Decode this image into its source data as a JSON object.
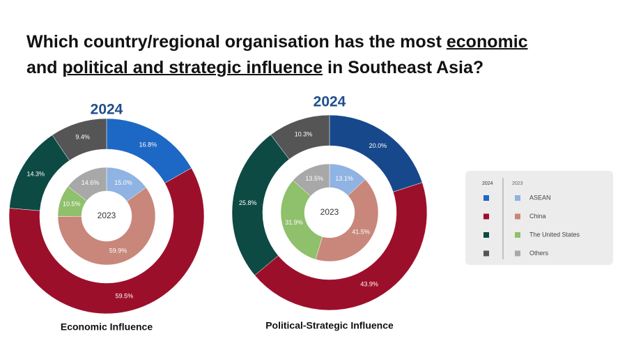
{
  "title_lines": [
    [
      {
        "text": "Which country/regional organisation has the most ",
        "underline": false
      },
      {
        "text": "economic",
        "underline": true
      }
    ],
    [
      {
        "text": "and ",
        "underline": false
      },
      {
        "text": "political and strategic influence",
        "underline": true
      },
      {
        "text": " in Southeast Asia?",
        "underline": false
      }
    ]
  ],
  "chart_data": [
    {
      "type": "donut",
      "title": "Economic Influence",
      "categories": [
        "ASEAN",
        "China",
        "The United States",
        "Others"
      ],
      "series": [
        {
          "name": "2024",
          "ring": "outer",
          "colors": [
            "#1d68c4",
            "#9c0f2a",
            "#0d4a44",
            "#555555"
          ],
          "values": [
            16.8,
            59.5,
            14.3,
            9.4
          ],
          "value_labels": [
            "16.8%",
            "59.5%",
            "14.3%",
            "9.4%"
          ]
        },
        {
          "name": "2023",
          "ring": "inner",
          "colors": [
            "#8fb3e2",
            "#c8877a",
            "#8fc06b",
            "#a8a8a8"
          ],
          "values": [
            15.0,
            59.9,
            10.5,
            14.6
          ],
          "value_labels": [
            "15.0%",
            "59.9%",
            "10.5%",
            "14.6%"
          ]
        }
      ]
    },
    {
      "type": "donut",
      "title": "Political-Strategic Influence",
      "series": [
        {
          "name": "2024",
          "ring": "outer",
          "colors": [
            "#17488c",
            "#9c0f2a",
            "#0d4a44",
            "#555555"
          ],
          "values": [
            20.0,
            43.9,
            25.8,
            10.3
          ],
          "value_labels": [
            "20.0%",
            "43.9%",
            "25.8%",
            "10.3%"
          ]
        },
        {
          "name": "2023",
          "ring": "inner",
          "colors": [
            "#8fb3e2",
            "#c8877a",
            "#8fc06b",
            "#a8a8a8"
          ],
          "values": [
            13.1,
            41.5,
            31.9,
            13.5
          ],
          "value_labels": [
            "13.1%",
            "41.5%",
            "31.9%",
            "13.5%"
          ]
        }
      ]
    }
  ]
}
